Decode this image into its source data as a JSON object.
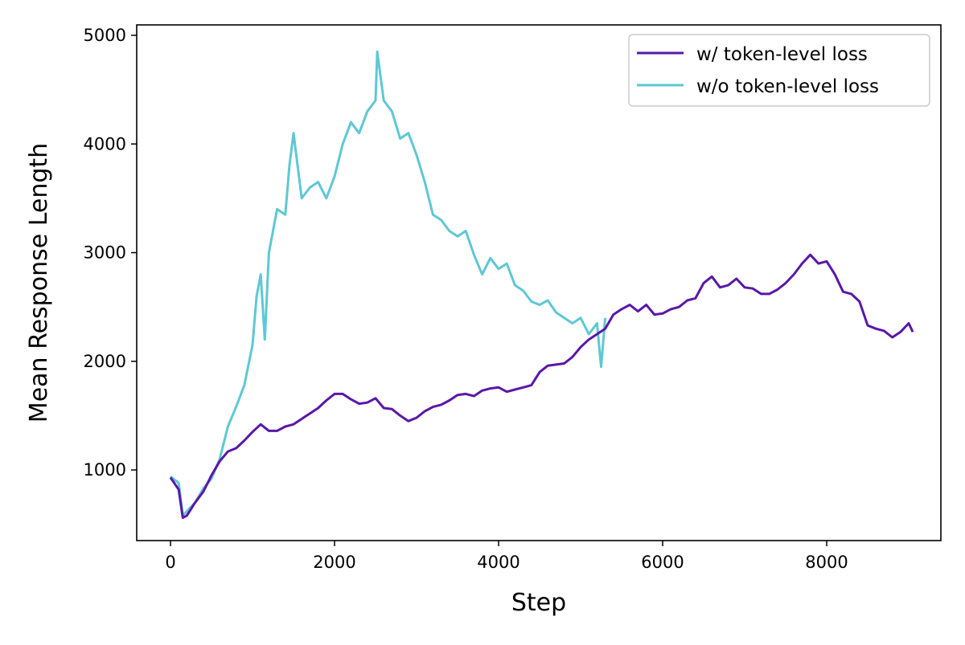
{
  "chart_data": {
    "type": "line",
    "title": "",
    "xlabel": "Step",
    "ylabel": "Mean Response Length",
    "xlim": [
      -412,
      9392
    ],
    "ylim": [
      350,
      5096
    ],
    "xticks": [
      0,
      2000,
      4000,
      6000,
      8000
    ],
    "yticks": [
      1000,
      2000,
      3000,
      4000,
      5000
    ],
    "grid": false,
    "legend_position": "top-right",
    "series": [
      {
        "name": "w/ token-level loss",
        "color": "#5a17a8",
        "x": [
          0,
          100,
          150,
          200,
          300,
          400,
          500,
          600,
          700,
          800,
          900,
          1000,
          1100,
          1200,
          1300,
          1400,
          1500,
          1600,
          1700,
          1800,
          1900,
          2000,
          2100,
          2200,
          2300,
          2400,
          2500,
          2600,
          2700,
          2800,
          2900,
          3000,
          3100,
          3200,
          3300,
          3400,
          3500,
          3600,
          3700,
          3800,
          3900,
          4000,
          4100,
          4200,
          4300,
          4400,
          4500,
          4600,
          4700,
          4800,
          4900,
          5000,
          5100,
          5200,
          5300,
          5400,
          5500,
          5600,
          5700,
          5800,
          5900,
          6000,
          6100,
          6200,
          6300,
          6400,
          6500,
          6600,
          6700,
          6800,
          6900,
          7000,
          7100,
          7200,
          7300,
          7400,
          7500,
          7600,
          7700,
          7800,
          7900,
          8000,
          8100,
          8200,
          8300,
          8400,
          8500,
          8600,
          8700,
          8800,
          8900,
          9000,
          9050
        ],
        "y": [
          930,
          820,
          560,
          580,
          700,
          800,
          950,
          1080,
          1170,
          1200,
          1270,
          1350,
          1420,
          1360,
          1360,
          1400,
          1420,
          1470,
          1520,
          1570,
          1640,
          1700,
          1700,
          1650,
          1610,
          1620,
          1660,
          1570,
          1560,
          1500,
          1450,
          1480,
          1540,
          1580,
          1600,
          1640,
          1690,
          1700,
          1680,
          1730,
          1750,
          1760,
          1720,
          1740,
          1760,
          1780,
          1900,
          1960,
          1970,
          1980,
          2040,
          2130,
          2200,
          2250,
          2300,
          2430,
          2480,
          2520,
          2460,
          2520,
          2430,
          2440,
          2480,
          2500,
          2560,
          2580,
          2720,
          2780,
          2680,
          2700,
          2760,
          2680,
          2670,
          2620,
          2620,
          2660,
          2720,
          2800,
          2900,
          2980,
          2900,
          2920,
          2800,
          2640,
          2620,
          2550,
          2330,
          2300,
          2280,
          2220,
          2270,
          2350,
          2270
        ]
      },
      {
        "name": "w/o token-level loss",
        "color": "#5ec8d4",
        "x": [
          0,
          100,
          150,
          200,
          300,
          400,
          500,
          600,
          700,
          800,
          900,
          1000,
          1050,
          1100,
          1150,
          1200,
          1300,
          1400,
          1450,
          1500,
          1600,
          1700,
          1800,
          1900,
          2000,
          2100,
          2200,
          2300,
          2400,
          2500,
          2520,
          2600,
          2700,
          2800,
          2900,
          3000,
          3100,
          3200,
          3300,
          3400,
          3500,
          3600,
          3700,
          3800,
          3900,
          4000,
          4100,
          4200,
          4300,
          4400,
          4500,
          4600,
          4700,
          4800,
          4900,
          5000,
          5100,
          5200,
          5250,
          5300
        ],
        "y": [
          940,
          880,
          580,
          620,
          700,
          830,
          920,
          1100,
          1400,
          1580,
          1780,
          2150,
          2600,
          2800,
          2200,
          3000,
          3400,
          3350,
          3800,
          4100,
          3500,
          3600,
          3650,
          3500,
          3700,
          4000,
          4200,
          4100,
          4300,
          4400,
          4850,
          4400,
          4300,
          4050,
          4100,
          3900,
          3650,
          3350,
          3300,
          3200,
          3150,
          3200,
          2980,
          2800,
          2950,
          2850,
          2900,
          2700,
          2650,
          2550,
          2520,
          2560,
          2450,
          2400,
          2350,
          2400,
          2250,
          2350,
          1950,
          2400
        ]
      }
    ]
  }
}
